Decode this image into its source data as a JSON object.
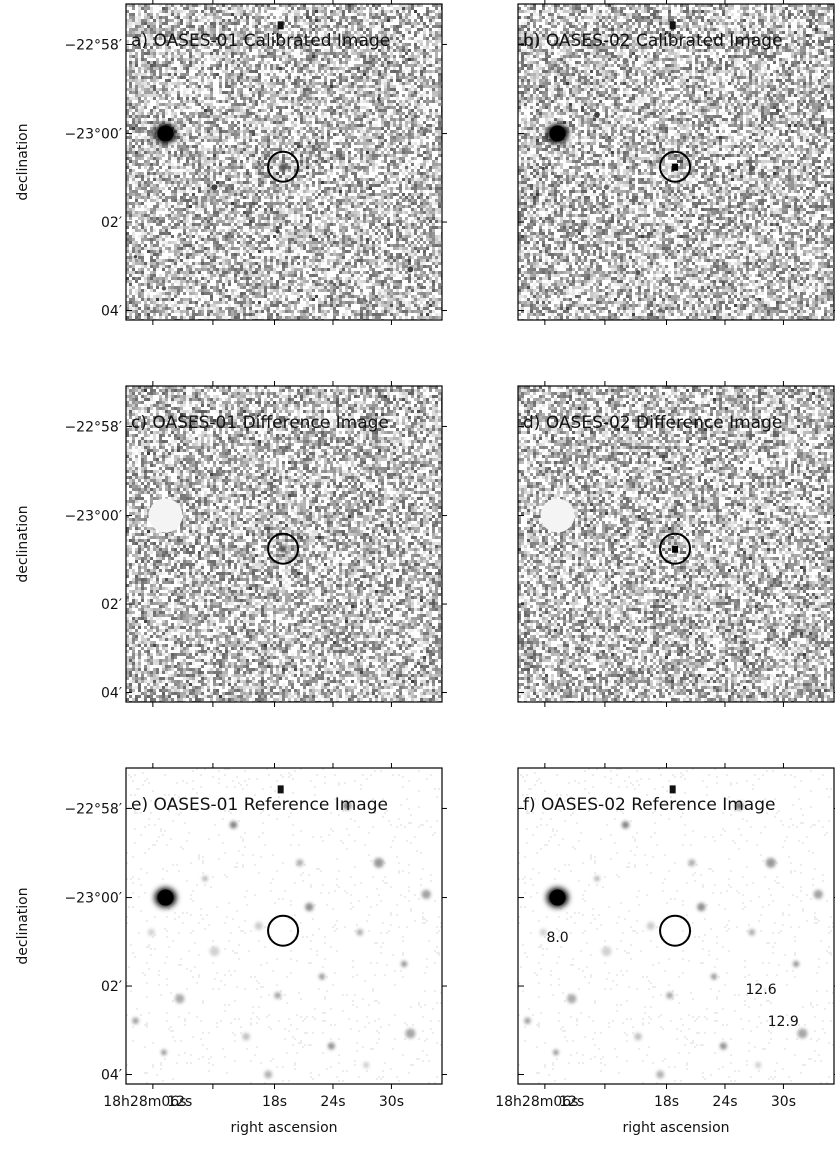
{
  "panels": [
    {
      "id": "a",
      "title": "a) OASES-01 Calibrated Image",
      "style": "calibrated",
      "seed": 11,
      "source": "faint",
      "circle": true,
      "magnitudes": []
    },
    {
      "id": "b",
      "title": "b) OASES-02 Calibrated Image",
      "style": "calibrated",
      "seed": 23,
      "source": "bright",
      "circle": true,
      "magnitudes": []
    },
    {
      "id": "c",
      "title": "c) OASES-01 Difference Image",
      "style": "difference",
      "seed": 37,
      "source": "faint",
      "circle": true,
      "magnitudes": []
    },
    {
      "id": "d",
      "title": "d) OASES-02 Difference Image",
      "style": "difference",
      "seed": 41,
      "source": "bright",
      "circle": true,
      "magnitudes": []
    },
    {
      "id": "e",
      "title": "e) OASES-01 Reference Image",
      "style": "reference",
      "seed": 53,
      "source": "none",
      "circle": true,
      "magnitudes": []
    },
    {
      "id": "f",
      "title": "f) OASES-02 Reference Image",
      "style": "reference",
      "seed": 53,
      "source": "none",
      "circle": true,
      "magnitudes": [
        "8.0",
        "12.6",
        "12.9"
      ]
    }
  ],
  "axes": {
    "ylabel": "declination",
    "xlabel": "right ascension",
    "yticks": [
      "−22°58′",
      "−23°00′",
      "02′",
      "04′"
    ],
    "xticks_first": "18h28m06s",
    "xticks": [
      "12s",
      "18s",
      "24s",
      "30s"
    ]
  }
}
